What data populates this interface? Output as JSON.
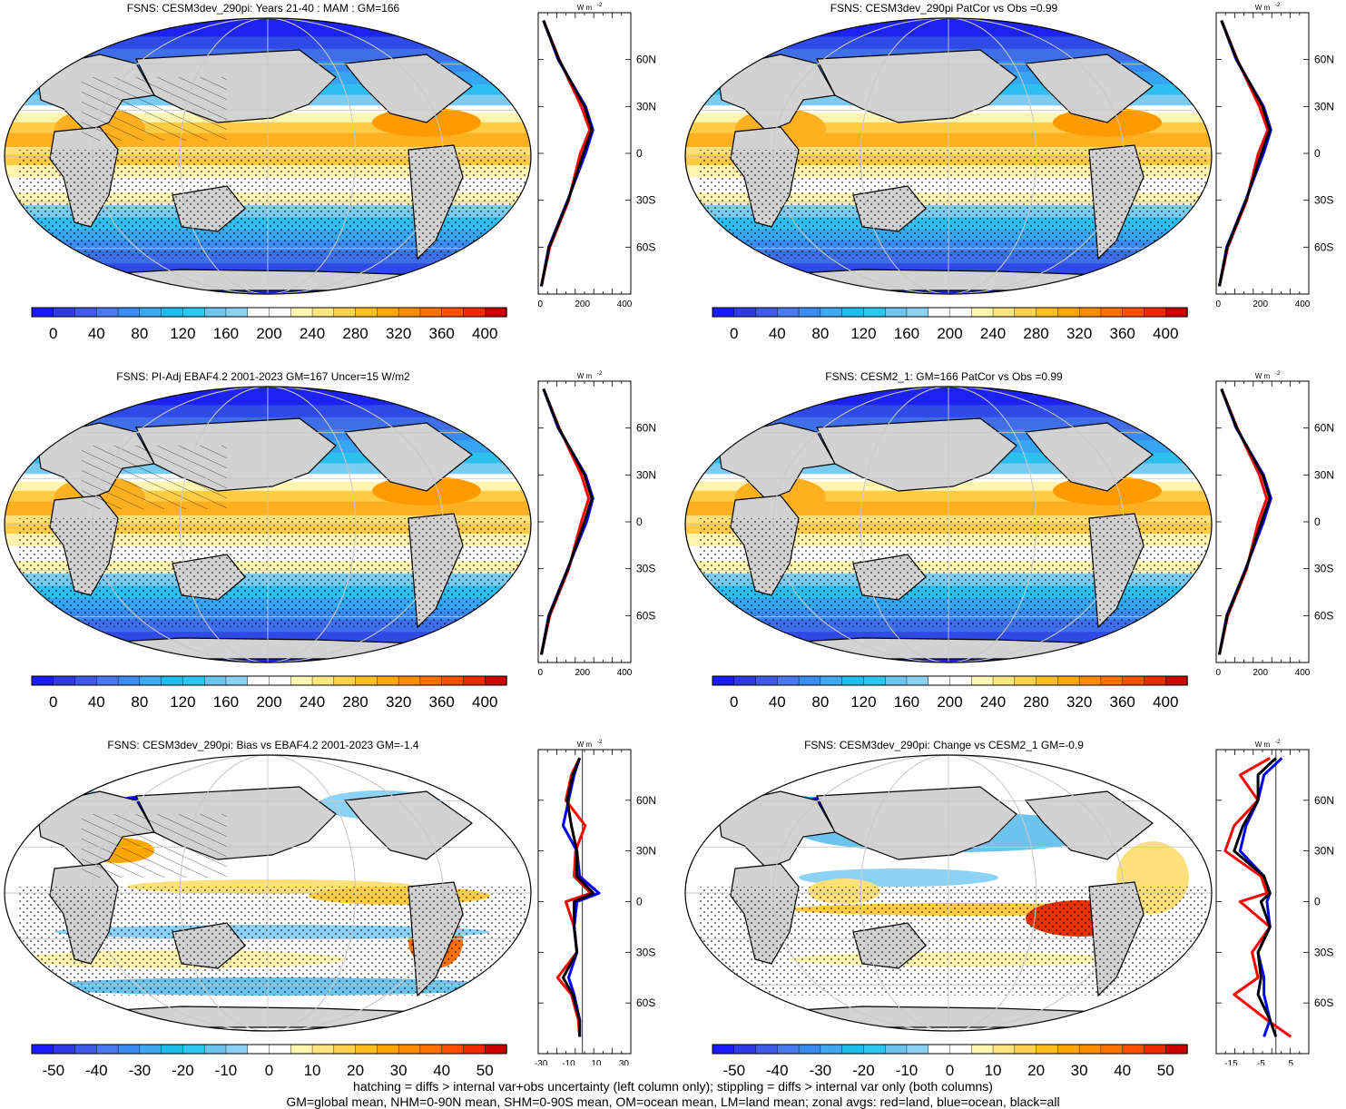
{
  "panels": [
    {
      "title": "FSNS: CESM3dev_290pi: Years 21-40 : MAM : GM=166",
      "kind": "abs",
      "colorbar_ticks": [
        "0",
        "40",
        "80",
        "120",
        "160",
        "200",
        "240",
        "280",
        "320",
        "360",
        "400"
      ],
      "zonal_ticks": [
        "0",
        "200",
        "400"
      ],
      "lat_ticks": [
        "60N",
        "30N",
        "0",
        "30S",
        "60S"
      ],
      "unit": "W m",
      "hatched": true,
      "stippled": true
    },
    {
      "title": "FSNS: CESM3dev_290pi PatCor vs Obs =0.99",
      "kind": "abs",
      "colorbar_ticks": [
        "0",
        "40",
        "80",
        "120",
        "160",
        "200",
        "240",
        "280",
        "320",
        "360",
        "400"
      ],
      "zonal_ticks": [
        "0",
        "200",
        "400"
      ],
      "lat_ticks": [
        "60N",
        "30N",
        "0",
        "30S",
        "60S"
      ],
      "unit": "W m",
      "hatched": false,
      "stippled": true
    },
    {
      "title": "FSNS: PI-Adj EBAF4.2 2001-2023 GM=167 Uncer=15 W/m2",
      "kind": "abs",
      "colorbar_ticks": [
        "0",
        "40",
        "80",
        "120",
        "160",
        "200",
        "240",
        "280",
        "320",
        "360",
        "400"
      ],
      "zonal_ticks": [
        "0",
        "200",
        "400"
      ],
      "lat_ticks": [
        "60N",
        "30N",
        "0",
        "30S",
        "60S"
      ],
      "unit": "W m",
      "hatched": true,
      "stippled": true
    },
    {
      "title": "FSNS: CESM2_1: GM=166 PatCor vs Obs =0.99",
      "kind": "abs",
      "colorbar_ticks": [
        "0",
        "40",
        "80",
        "120",
        "160",
        "200",
        "240",
        "280",
        "320",
        "360",
        "400"
      ],
      "zonal_ticks": [
        "0",
        "200",
        "400"
      ],
      "lat_ticks": [
        "60N",
        "30N",
        "0",
        "30S",
        "60S"
      ],
      "unit": "W m",
      "hatched": false,
      "stippled": true
    },
    {
      "title": "FSNS: CESM3dev_290pi: Bias vs EBAF4.2 2001-2023 GM=-1.4",
      "kind": "diff",
      "colorbar_ticks": [
        "-50",
        "-40",
        "-30",
        "-20",
        "-10",
        "0",
        "10",
        "20",
        "30",
        "40",
        "50"
      ],
      "zonal_ticks": [
        "-30",
        "-10",
        "10",
        "30"
      ],
      "lat_ticks": [
        "60N",
        "30N",
        "0",
        "30S",
        "60S"
      ],
      "unit": "W m",
      "hatched": true,
      "stippled": true
    },
    {
      "title": "FSNS: CESM3dev_290pi: Change vs CESM2_1 GM=-0.9",
      "kind": "diff",
      "colorbar_ticks": [
        "-50",
        "-40",
        "-30",
        "-20",
        "-10",
        "0",
        "10",
        "20",
        "30",
        "40",
        "50"
      ],
      "zonal_ticks": [
        "-15",
        "-5",
        "5"
      ],
      "lat_ticks": [
        "60N",
        "30N",
        "0",
        "30S",
        "60S"
      ],
      "unit": "W m",
      "hatched": false,
      "stippled": true
    }
  ],
  "chart_data": [
    {
      "type": "line",
      "title": "FSNS: CESM3dev_290pi: Years 21-40 : MAM : GM=166",
      "xlabel": "W m-2",
      "xlim": [
        -10,
        430
      ],
      "y": [
        -85,
        -60,
        -30,
        0,
        15,
        30,
        60,
        85
      ],
      "series": [
        {
          "name": "red",
          "values": [
            5,
            45,
            135,
            190,
            235,
            195,
            90,
            15
          ]
        },
        {
          "name": "blue",
          "values": [
            5,
            40,
            130,
            215,
            250,
            215,
            85,
            15
          ]
        },
        {
          "name": "black",
          "values": [
            5,
            42,
            132,
            205,
            245,
            210,
            88,
            15
          ]
        }
      ]
    },
    {
      "type": "line",
      "title": "FSNS: CESM3dev_290pi PatCor vs Obs =0.99",
      "xlabel": "W m-2",
      "xlim": [
        -10,
        430
      ],
      "y": [
        -85,
        -60,
        -30,
        0,
        15,
        30,
        60,
        85
      ],
      "series": [
        {
          "name": "red",
          "values": [
            5,
            45,
            135,
            190,
            235,
            195,
            90,
            15
          ]
        },
        {
          "name": "blue",
          "values": [
            5,
            40,
            130,
            215,
            250,
            215,
            85,
            15
          ]
        },
        {
          "name": "black",
          "values": [
            5,
            42,
            132,
            205,
            245,
            210,
            88,
            15
          ]
        }
      ]
    },
    {
      "type": "line",
      "title": "FSNS: PI-Adj EBAF4.2 2001-2023 GM=167 Uncer=15 W/m2",
      "xlabel": "W m-2",
      "xlim": [
        -10,
        430
      ],
      "y": [
        -85,
        -60,
        -30,
        0,
        15,
        30,
        60,
        85
      ],
      "series": [
        {
          "name": "red",
          "values": [
            5,
            45,
            135,
            195,
            230,
            195,
            90,
            15
          ]
        },
        {
          "name": "blue",
          "values": [
            5,
            40,
            130,
            220,
            250,
            215,
            85,
            15
          ]
        },
        {
          "name": "black",
          "values": [
            5,
            42,
            132,
            210,
            245,
            210,
            88,
            15
          ]
        }
      ]
    },
    {
      "type": "line",
      "title": "FSNS: CESM2_1: GM=166 PatCor vs Obs =0.99",
      "xlabel": "W m-2",
      "xlim": [
        -10,
        430
      ],
      "y": [
        -85,
        -60,
        -30,
        0,
        15,
        30,
        60,
        85
      ],
      "series": [
        {
          "name": "red",
          "values": [
            5,
            45,
            135,
            190,
            230,
            195,
            90,
            15
          ]
        },
        {
          "name": "blue",
          "values": [
            5,
            40,
            130,
            215,
            250,
            215,
            85,
            15
          ]
        },
        {
          "name": "black",
          "values": [
            5,
            42,
            132,
            205,
            245,
            210,
            88,
            15
          ]
        }
      ]
    },
    {
      "type": "line",
      "title": "FSNS: CESM3dev_290pi: Bias vs EBAF4.2 2001-2023 GM=-1.4",
      "xlabel": "W m-2",
      "xlim": [
        -32,
        35
      ],
      "y": [
        -80,
        -70,
        -55,
        -45,
        -30,
        -15,
        0,
        5,
        15,
        30,
        45,
        60,
        75,
        85
      ],
      "series": [
        {
          "name": "red",
          "values": [
            -2,
            -3,
            -8,
            -18,
            -4,
            -6,
            -12,
            6,
            -6,
            -5,
            2,
            -12,
            -8,
            -2
          ]
        },
        {
          "name": "blue",
          "values": [
            -2,
            -2,
            -6,
            -10,
            -4,
            -6,
            -4,
            12,
            -2,
            -4,
            -14,
            -10,
            -6,
            -2
          ]
        },
        {
          "name": "black",
          "values": [
            -2,
            -2,
            -7,
            -14,
            -4,
            -6,
            -6,
            8,
            -4,
            -4,
            -8,
            -11,
            -7,
            -2
          ]
        }
      ]
    },
    {
      "type": "line",
      "title": "FSNS: CESM3dev_290pi: Change vs CESM2_1 GM=-0.9",
      "xlabel": "W m-2",
      "xlim": [
        -20,
        11
      ],
      "y": [
        -80,
        -70,
        -55,
        -45,
        -30,
        -15,
        0,
        5,
        15,
        30,
        45,
        60,
        75,
        85
      ],
      "series": [
        {
          "name": "red",
          "values": [
            5,
            -3,
            -14,
            -6,
            -8,
            -2,
            -12,
            -3,
            -5,
            -17,
            -14,
            -6,
            -12,
            -2
          ]
        },
        {
          "name": "blue",
          "values": [
            -4,
            -2,
            -4,
            -4,
            -6,
            -2,
            -3,
            -2,
            -4,
            -12,
            -10,
            -6,
            -4,
            2
          ]
        },
        {
          "name": "black",
          "values": [
            0,
            -2,
            -6,
            -5,
            -6,
            -2,
            -5,
            -2,
            -4,
            -14,
            -11,
            -6,
            -6,
            0
          ]
        }
      ]
    }
  ],
  "colors": {
    "abs_scale": [
      "#1a1aff",
      "#2f3ae6",
      "#3d5ae8",
      "#4a78ee",
      "#3a8cf0",
      "#3fa8f2",
      "#1cbcec",
      "#2ac8f0",
      "#6cc4ee",
      "#8cd2f4",
      "#ffffff",
      "#ffffff",
      "#fff7b0",
      "#ffe680",
      "#ffd24d",
      "#ffbf1f",
      "#ffa600",
      "#ff8c00",
      "#ff7000",
      "#ff5000",
      "#f02a00",
      "#cc0000"
    ],
    "diff_scale": [
      "#1a1aff",
      "#2f3ae6",
      "#3d5ae8",
      "#4a78ee",
      "#3a8cf0",
      "#3fa8f2",
      "#1cbcec",
      "#2ac8f0",
      "#6cc4ee",
      "#8cd2f4",
      "#ffffff",
      "#ffffff",
      "#fff7b0",
      "#ffe680",
      "#ffd24d",
      "#ffbf1f",
      "#ffa600",
      "#ff8c00",
      "#ff7000",
      "#ff5000",
      "#f02a00",
      "#cc0000"
    ],
    "land": "#d2d2d2",
    "red": "#ff0000",
    "blue": "#0000ff",
    "black": "#000000"
  },
  "footer": {
    "line1": "hatching = diffs > internal var+obs uncertainty (left column only); stippling = diffs > internal var only (both columns)",
    "line2": "GM=global mean, NHM=0-90N mean, SHM=0-90S mean, OM=ocean mean, LM=land mean; zonal avgs: red=land, blue=ocean, black=all"
  }
}
